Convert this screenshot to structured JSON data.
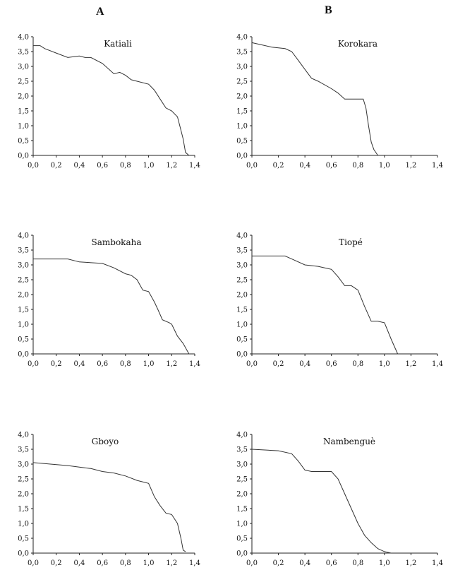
{
  "column_labels": [
    "A",
    "B"
  ],
  "chart_data": [
    {
      "type": "line",
      "title": "Katiali",
      "column": "A",
      "xlim": [
        0.0,
        1.4
      ],
      "ylim": [
        0.0,
        4.0
      ],
      "xticks": [
        "0,0",
        "0,2",
        "0,4",
        "0,6",
        "0,8",
        "1,0",
        "1,2",
        "1,4"
      ],
      "yticks": [
        "0,0",
        "0,5",
        "1,0",
        "1,5",
        "2,0",
        "2,5",
        "3,0",
        "3,5",
        "4,0"
      ],
      "x": [
        0.0,
        0.06,
        0.1,
        0.2,
        0.3,
        0.4,
        0.45,
        0.5,
        0.6,
        0.7,
        0.75,
        0.8,
        0.85,
        0.9,
        1.0,
        1.05,
        1.1,
        1.15,
        1.2,
        1.25,
        1.28,
        1.3,
        1.32,
        1.35
      ],
      "y": [
        3.7,
        3.7,
        3.6,
        3.45,
        3.3,
        3.35,
        3.3,
        3.3,
        3.1,
        2.75,
        2.8,
        2.7,
        2.55,
        2.5,
        2.4,
        2.2,
        1.9,
        1.6,
        1.5,
        1.3,
        0.85,
        0.55,
        0.1,
        0.0
      ]
    },
    {
      "type": "line",
      "title": "Korokara",
      "column": "B",
      "xlim": [
        0.0,
        1.4
      ],
      "ylim": [
        0.0,
        4.0
      ],
      "xticks": [
        "0,0",
        "0,2",
        "0,4",
        "0,6",
        "0,8",
        "1,0",
        "1,2",
        "1,4"
      ],
      "yticks": [
        "0,0",
        "0,5",
        "1,0",
        "1,5",
        "2,0",
        "2,5",
        "3,0",
        "3,5",
        "4,0"
      ],
      "x": [
        0.0,
        0.05,
        0.15,
        0.25,
        0.3,
        0.35,
        0.4,
        0.45,
        0.5,
        0.6,
        0.65,
        0.7,
        0.8,
        0.84,
        0.86,
        0.88,
        0.9,
        0.92,
        0.95
      ],
      "y": [
        3.8,
        3.75,
        3.65,
        3.6,
        3.5,
        3.2,
        2.9,
        2.6,
        2.5,
        2.25,
        2.1,
        1.9,
        1.9,
        1.9,
        1.6,
        1.0,
        0.45,
        0.2,
        0.0
      ]
    },
    {
      "type": "line",
      "title": "Sambokaha",
      "column": "A",
      "xlim": [
        0.0,
        1.4
      ],
      "ylim": [
        0.0,
        4.0
      ],
      "xticks": [
        "0,0",
        "0,2",
        "0,4",
        "0,6",
        "0,8",
        "1,0",
        "1,2",
        "1,4"
      ],
      "yticks": [
        "0,0",
        "0,5",
        "1,0",
        "1,5",
        "2,0",
        "2,5",
        "3,0",
        "3,5",
        "4,0"
      ],
      "x": [
        0.0,
        0.3,
        0.4,
        0.6,
        0.7,
        0.8,
        0.85,
        0.9,
        0.95,
        1.0,
        1.05,
        1.08,
        1.12,
        1.18,
        1.2,
        1.25,
        1.3,
        1.35
      ],
      "y": [
        3.2,
        3.2,
        3.1,
        3.05,
        2.9,
        2.7,
        2.65,
        2.5,
        2.15,
        2.1,
        1.75,
        1.5,
        1.15,
        1.05,
        1.0,
        0.6,
        0.35,
        0.0
      ]
    },
    {
      "type": "line",
      "title": "Tiopé",
      "column": "B",
      "xlim": [
        0.0,
        1.4
      ],
      "ylim": [
        0.0,
        4.0
      ],
      "xticks": [
        "0,0",
        "0,2",
        "0,4",
        "0,6",
        "0,8",
        "1,0",
        "1,2",
        "1,4"
      ],
      "yticks": [
        "0,0",
        "0,5",
        "1,0",
        "1,5",
        "2,0",
        "2,5",
        "3,0",
        "3,5",
        "4,0"
      ],
      "x": [
        0.0,
        0.25,
        0.3,
        0.4,
        0.5,
        0.55,
        0.6,
        0.65,
        0.7,
        0.75,
        0.8,
        0.85,
        0.9,
        0.95,
        1.0,
        1.05,
        1.1
      ],
      "y": [
        3.3,
        3.3,
        3.2,
        3.0,
        2.95,
        2.9,
        2.85,
        2.6,
        2.3,
        2.3,
        2.15,
        1.6,
        1.1,
        1.1,
        1.05,
        0.5,
        0.0
      ]
    },
    {
      "type": "line",
      "title": "Gboyo",
      "column": "A",
      "xlim": [
        0.0,
        1.4
      ],
      "ylim": [
        0.0,
        4.0
      ],
      "xticks": [
        "0,0",
        "0,2",
        "0,4",
        "0,6",
        "0,8",
        "1,0",
        "1,2",
        "1,4"
      ],
      "yticks": [
        "0,0",
        "0,5",
        "1,0",
        "1,5",
        "2,0",
        "2,5",
        "3,0",
        "3,5",
        "4,0"
      ],
      "x": [
        0.0,
        0.15,
        0.3,
        0.4,
        0.5,
        0.6,
        0.7,
        0.8,
        0.9,
        1.0,
        1.05,
        1.1,
        1.15,
        1.2,
        1.25,
        1.28,
        1.3,
        1.32
      ],
      "y": [
        3.05,
        3.0,
        2.95,
        2.9,
        2.85,
        2.75,
        2.7,
        2.6,
        2.45,
        2.35,
        1.9,
        1.6,
        1.35,
        1.3,
        1.0,
        0.5,
        0.1,
        0.05
      ]
    },
    {
      "type": "line",
      "title": "Nambenguè",
      "column": "B",
      "xlim": [
        0.0,
        1.4
      ],
      "ylim": [
        0.0,
        4.0
      ],
      "xticks": [
        "0,0",
        "0,2",
        "0,4",
        "0,6",
        "0,8",
        "1,0",
        "1,2",
        "1,4"
      ],
      "yticks": [
        "0,0",
        "0,5",
        "1,0",
        "1,5",
        "2,0",
        "2,5",
        "3,0",
        "3,5",
        "4,0"
      ],
      "x": [
        0.0,
        0.2,
        0.3,
        0.35,
        0.4,
        0.45,
        0.5,
        0.6,
        0.65,
        0.7,
        0.75,
        0.8,
        0.85,
        0.9,
        0.95,
        1.0,
        1.05
      ],
      "y": [
        3.5,
        3.45,
        3.35,
        3.1,
        2.8,
        2.75,
        2.75,
        2.75,
        2.5,
        2.0,
        1.5,
        1.0,
        0.6,
        0.35,
        0.15,
        0.05,
        0.0
      ]
    }
  ]
}
